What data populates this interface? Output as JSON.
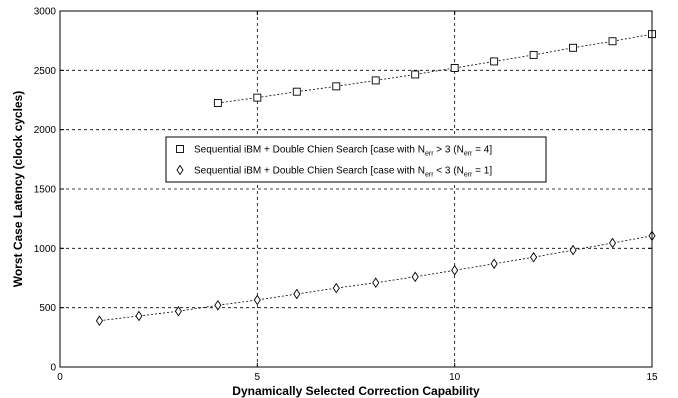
{
  "chart_data": {
    "type": "line",
    "xlabel": "Dynamically Selected Correction Capability",
    "ylabel": "Worst Case Latency (clock cycles)",
    "xlim": [
      0,
      15
    ],
    "ylim": [
      0,
      3000
    ],
    "xticks": [
      0,
      5,
      10,
      15
    ],
    "yticks": [
      0,
      500,
      1000,
      1500,
      2000,
      2500,
      3000
    ],
    "grid": true,
    "grid_style": "dashed",
    "legend_placement": "center-left",
    "series": [
      {
        "marker": "square",
        "line_style": "dotted",
        "legend": {
          "main": "Sequential iBM + Double Chien Search [case with N",
          "sub1": "err",
          "mid": " > 3 (N",
          "sub2": "err",
          "end": " = 4]"
        },
        "x": [
          4,
          5,
          6,
          7,
          8,
          9,
          10,
          11,
          12,
          13,
          14,
          15
        ],
        "y": [
          2225,
          2270,
          2320,
          2365,
          2415,
          2465,
          2520,
          2575,
          2630,
          2690,
          2745,
          2805
        ]
      },
      {
        "marker": "diamond",
        "line_style": "dotted",
        "legend": {
          "main": "Sequential iBM + Double Chien Search [case with N",
          "sub1": "err",
          "mid": " < 3 (N",
          "sub2": "err",
          "end": " = 1]"
        },
        "x": [
          1,
          2,
          3,
          4,
          5,
          6,
          7,
          8,
          9,
          10,
          11,
          12,
          13,
          14,
          15
        ],
        "y": [
          390,
          430,
          470,
          520,
          565,
          615,
          665,
          710,
          760,
          815,
          870,
          925,
          985,
          1045,
          1105
        ]
      }
    ]
  }
}
